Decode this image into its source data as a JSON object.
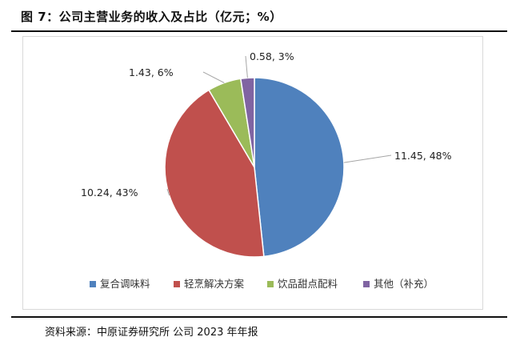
{
  "title": "图 7：公司主营业务的收入及占比（亿元；%）",
  "source": {
    "label": "资料来源：",
    "text": "中原证券研究所 公司 2023 年年报"
  },
  "chart_data": {
    "type": "pie",
    "title": "",
    "categories": [
      "复合调味料",
      "轻烹解决方案",
      "饮品甜点配料",
      "其他（补充）"
    ],
    "values": [
      11.45,
      10.24,
      1.43,
      0.58
    ],
    "percents": [
      48,
      43,
      6,
      3
    ],
    "labels": [
      "11.45, 48%",
      "10.24, 43%",
      "1.43, 6%",
      "0.58, 3%"
    ],
    "colors": [
      "#4f81bd",
      "#c0504d",
      "#9bbb59",
      "#8064a2"
    ],
    "legend_position": "bottom"
  }
}
